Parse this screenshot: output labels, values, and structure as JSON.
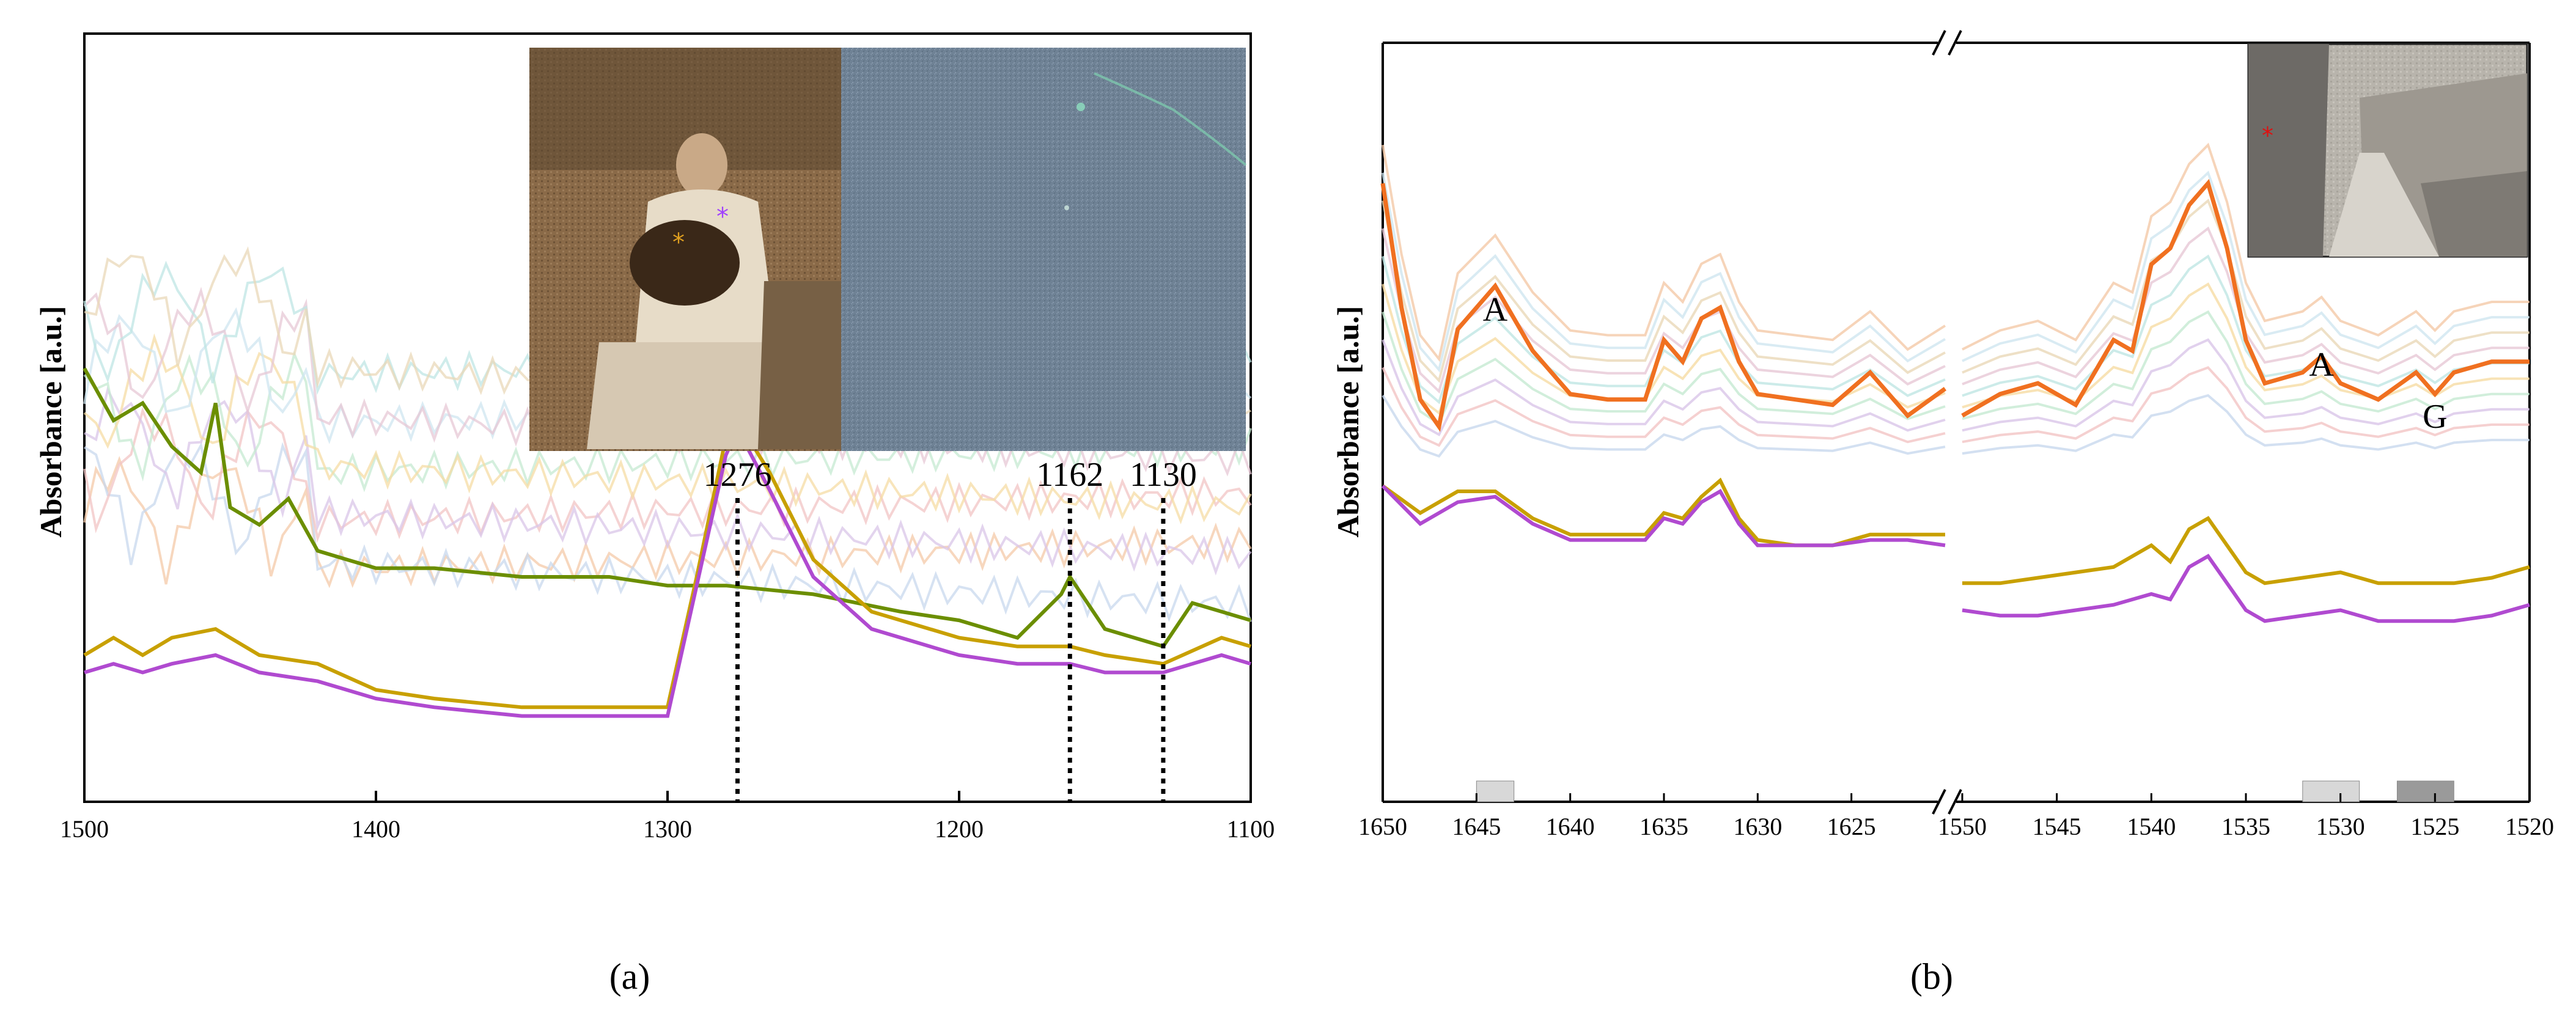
{
  "figure": {
    "panel_a_label": "(a)",
    "panel_b_label": "(b)"
  },
  "chart_data": [
    {
      "type": "line",
      "panel": "a",
      "ylabel": "Absorbance [a.u.]",
      "xlabel": "",
      "xlim": [
        1500,
        1100
      ],
      "x_ticks": [
        1500,
        1400,
        1300,
        1200,
        1100
      ],
      "y_ticks_shown": false,
      "grid": false,
      "annotations": [
        {
          "x": 1276,
          "label": "1276"
        },
        {
          "x": 1162,
          "label": "1162"
        },
        {
          "x": 1130,
          "label": "1130"
        }
      ],
      "inset": "photograph of a woman seated with a dog, with two asterisk markers, and a bluish sample surface image",
      "highlighted_series": [
        {
          "color": "#6b8e00",
          "x": [
            1500,
            1490,
            1480,
            1470,
            1460,
            1455,
            1450,
            1440,
            1430,
            1420,
            1410,
            1400,
            1380,
            1350,
            1320,
            1300,
            1280,
            1250,
            1220,
            1200,
            1180,
            1165,
            1162,
            1150,
            1130,
            1120,
            1110,
            1100
          ],
          "y": [
            0.42,
            0.36,
            0.38,
            0.33,
            0.3,
            0.38,
            0.26,
            0.24,
            0.27,
            0.21,
            0.2,
            0.19,
            0.19,
            0.18,
            0.18,
            0.17,
            0.17,
            0.16,
            0.14,
            0.13,
            0.11,
            0.16,
            0.18,
            0.12,
            0.1,
            0.15,
            0.14,
            0.13
          ]
        },
        {
          "color": "#c8a000",
          "x": [
            1500,
            1490,
            1480,
            1470,
            1455,
            1440,
            1420,
            1400,
            1380,
            1350,
            1320,
            1300,
            1290,
            1280,
            1276,
            1265,
            1250,
            1230,
            1200,
            1180,
            1162,
            1150,
            1130,
            1110,
            1100
          ],
          "y": [
            0.09,
            0.11,
            0.09,
            0.11,
            0.12,
            0.09,
            0.08,
            0.05,
            0.04,
            0.03,
            0.03,
            0.03,
            0.18,
            0.34,
            0.36,
            0.3,
            0.2,
            0.14,
            0.11,
            0.1,
            0.1,
            0.09,
            0.08,
            0.11,
            0.1
          ]
        },
        {
          "color": "#b04ad0",
          "x": [
            1500,
            1490,
            1480,
            1470,
            1455,
            1440,
            1420,
            1400,
            1380,
            1350,
            1320,
            1300,
            1290,
            1280,
            1276,
            1265,
            1250,
            1230,
            1200,
            1180,
            1162,
            1150,
            1130,
            1110,
            1100
          ],
          "y": [
            0.07,
            0.08,
            0.07,
            0.08,
            0.09,
            0.07,
            0.06,
            0.04,
            0.03,
            0.02,
            0.02,
            0.02,
            0.17,
            0.32,
            0.35,
            0.28,
            0.18,
            0.12,
            0.09,
            0.08,
            0.08,
            0.07,
            0.07,
            0.09,
            0.08
          ]
        }
      ],
      "background_series_colors": [
        "#f4c9a8",
        "#c8d8ee",
        "#f2c4c4",
        "#d9c6e8",
        "#c6ead2",
        "#f6dca4",
        "#cfe6f0",
        "#e7c8d6",
        "#bfe6e4",
        "#ead8b8"
      ]
    },
    {
      "type": "line",
      "panel": "b",
      "ylabel": "Absorbance [a.u.]",
      "xlabel": "",
      "broken_x_axis": true,
      "x_segments": [
        [
          1650,
          1620
        ],
        [
          1550,
          1520
        ]
      ],
      "x_ticks_left": [
        1650,
        1645,
        1640,
        1635,
        1630,
        1625
      ],
      "x_ticks_right": [
        1550,
        1545,
        1540,
        1535,
        1530,
        1525,
        1520
      ],
      "y_ticks_shown": false,
      "annotations": [
        {
          "x": 1644,
          "label": "A"
        },
        {
          "x": 1531,
          "label": "A"
        },
        {
          "x": 1525,
          "label": "G"
        }
      ],
      "shaded_bands": [
        {
          "range": [
            1645,
            1643
          ],
          "shade": "light"
        },
        {
          "range": [
            1532,
            1529
          ],
          "shade": "light"
        },
        {
          "range": [
            1527,
            1524
          ],
          "shade": "dark"
        }
      ],
      "inset": "historic street photograph with a red asterisk marker",
      "highlighted_series": [
        {
          "color": "#f07020",
          "left": {
            "x": [
              1650,
              1649,
              1648,
              1647,
              1646,
              1644,
              1642,
              1640,
              1638,
              1636,
              1635,
              1634,
              1633,
              1632,
              1631,
              1630,
              1628,
              1626,
              1624,
              1622,
              1620
            ],
            "y": [
              0.95,
              0.72,
              0.55,
              0.5,
              0.68,
              0.76,
              0.64,
              0.56,
              0.55,
              0.55,
              0.66,
              0.62,
              0.7,
              0.72,
              0.62,
              0.56,
              0.55,
              0.54,
              0.6,
              0.52,
              0.57
            ]
          },
          "right": {
            "x": [
              1550,
              1548,
              1546,
              1544,
              1542,
              1541,
              1540,
              1539,
              1538,
              1537,
              1536,
              1535,
              1534,
              1532,
              1531,
              1530,
              1528,
              1526,
              1525,
              1524,
              1522,
              1520
            ],
            "y": [
              0.52,
              0.56,
              0.58,
              0.54,
              0.66,
              0.64,
              0.8,
              0.83,
              0.91,
              0.95,
              0.83,
              0.66,
              0.58,
              0.6,
              0.63,
              0.58,
              0.55,
              0.6,
              0.56,
              0.6,
              0.62,
              0.62
            ]
          }
        },
        {
          "color": "#c8a000",
          "left": {
            "x": [
              1650,
              1648,
              1646,
              1644,
              1642,
              1640,
              1638,
              1636,
              1635,
              1634,
              1633,
              1632,
              1631,
              1630,
              1628,
              1626,
              1624,
              1622,
              1620
            ],
            "y": [
              0.39,
              0.34,
              0.38,
              0.38,
              0.33,
              0.3,
              0.3,
              0.3,
              0.34,
              0.33,
              0.37,
              0.4,
              0.33,
              0.29,
              0.28,
              0.28,
              0.3,
              0.3,
              0.3
            ]
          },
          "right": {
            "x": [
              1550,
              1548,
              1546,
              1544,
              1542,
              1540,
              1539,
              1538,
              1537,
              1536,
              1535,
              1534,
              1532,
              1530,
              1528,
              1526,
              1524,
              1522,
              1520
            ],
            "y": [
              0.21,
              0.21,
              0.22,
              0.23,
              0.24,
              0.28,
              0.25,
              0.31,
              0.33,
              0.28,
              0.23,
              0.21,
              0.22,
              0.23,
              0.21,
              0.21,
              0.21,
              0.22,
              0.24
            ]
          }
        },
        {
          "color": "#b04ad0",
          "left": {
            "x": [
              1650,
              1648,
              1646,
              1644,
              1642,
              1640,
              1638,
              1636,
              1635,
              1634,
              1633,
              1632,
              1631,
              1630,
              1628,
              1626,
              1624,
              1622,
              1620
            ],
            "y": [
              0.39,
              0.32,
              0.36,
              0.37,
              0.32,
              0.29,
              0.29,
              0.29,
              0.33,
              0.32,
              0.36,
              0.38,
              0.32,
              0.28,
              0.28,
              0.28,
              0.29,
              0.29,
              0.28
            ]
          },
          "right": {
            "x": [
              1550,
              1548,
              1546,
              1544,
              1542,
              1540,
              1539,
              1538,
              1537,
              1536,
              1535,
              1534,
              1532,
              1530,
              1528,
              1526,
              1524,
              1522,
              1520
            ],
            "y": [
              0.16,
              0.15,
              0.15,
              0.16,
              0.17,
              0.19,
              0.18,
              0.24,
              0.26,
              0.21,
              0.16,
              0.14,
              0.15,
              0.16,
              0.14,
              0.14,
              0.14,
              0.15,
              0.17
            ]
          }
        }
      ],
      "background_series_colors": [
        "#c8d8ee",
        "#f2c4c4",
        "#d9c6e8",
        "#c6ead2",
        "#f6dca4",
        "#bfe6e4",
        "#e7c8d6",
        "#ead8b8",
        "#cfe6f0",
        "#f4c9a8"
      ]
    }
  ]
}
